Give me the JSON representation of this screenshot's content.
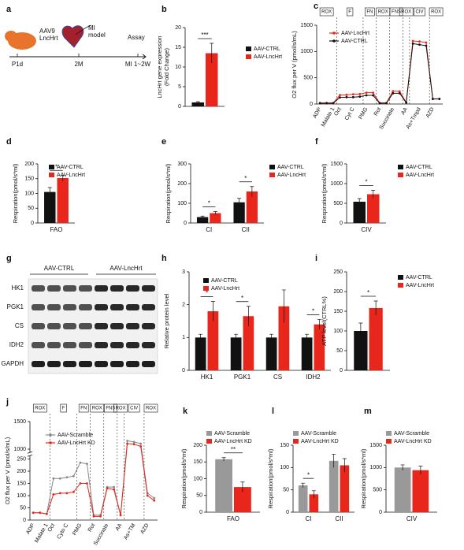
{
  "chart_data": [
    {
      "type": "diagram",
      "label": "a",
      "vector": [
        "AAV9",
        "LncHrt"
      ],
      "model": [
        "MI",
        "model"
      ],
      "assay": "Assay",
      "timepoints": [
        "P1d",
        "2M",
        "MI 1~2W"
      ]
    },
    {
      "type": "bar",
      "label": "b",
      "ylabel": [
        "LncHrt gene expression",
        "(Fold Change)"
      ],
      "categories": [
        null
      ],
      "series": [
        {
          "name": "AAV-CTRL",
          "color": "#111111",
          "values": [
            1
          ],
          "errors": [
            0.2
          ]
        },
        {
          "name": "AAV-LncHrt",
          "color": "#e8261c",
          "values": [
            13.5
          ],
          "errors": [
            2.5
          ]
        }
      ],
      "annotations": [
        "***"
      ],
      "ylim": [
        0,
        20
      ],
      "yticks": [
        0,
        5,
        10,
        15,
        20
      ]
    },
    {
      "type": "line",
      "label": "c",
      "ylabel": [
        "O2 flux per V (pmol/s/mL)"
      ],
      "phases": [
        "ROX",
        "F",
        "FN",
        "ROX",
        "FNS",
        "ROX",
        "CIV",
        "ROX"
      ],
      "categories": [
        "ADP",
        null,
        "Malate 1",
        "Oct",
        null,
        "Cyt C",
        null,
        "PMG",
        null,
        "Rot",
        null,
        "Succinate",
        null,
        "AA",
        null,
        "As+Tmpd",
        null,
        "AZD",
        null
      ],
      "series": [
        {
          "name": "AAV-LncHrt",
          "color": "#e8261c",
          "values": [
            20,
            20,
            20,
            170,
            175,
            185,
            190,
            215,
            215,
            20,
            20,
            245,
            240,
            30,
            1200,
            1190,
            1170,
            100,
            100
          ]
        },
        {
          "name": "AAV-CTRL",
          "color": "#111111",
          "values": [
            15,
            15,
            15,
            125,
            130,
            130,
            140,
            165,
            165,
            15,
            15,
            205,
            205,
            25,
            1150,
            1130,
            1110,
            95,
            95
          ]
        }
      ],
      "ylim": [
        0,
        1500
      ],
      "yticks": [
        0,
        500,
        1000,
        1500
      ]
    },
    {
      "type": "bar",
      "label": "d",
      "ylabel": [
        "Respiration(pmol/s*ml)"
      ],
      "categories": [
        "FAO"
      ],
      "series": [
        {
          "name": "AAV-CTRL",
          "color": "#111111",
          "values": [
            105
          ],
          "errors": [
            15
          ]
        },
        {
          "name": "AAV-LncHrt",
          "color": "#e8261c",
          "values": [
            152
          ],
          "errors": [
            10
          ]
        }
      ],
      "annotations": [
        "*"
      ],
      "ylim": [
        0,
        200
      ],
      "yticks": [
        0,
        50,
        100,
        150,
        200
      ]
    },
    {
      "type": "bar",
      "label": "e",
      "ylabel": [
        "Respiration(pmol/s*ml)"
      ],
      "categories": [
        "CI",
        "CII"
      ],
      "series": [
        {
          "name": "AAV-CTRL",
          "color": "#111111",
          "values": [
            30,
            105
          ],
          "errors": [
            5,
            20
          ]
        },
        {
          "name": "AAV-LncHrt",
          "color": "#e8261c",
          "values": [
            50,
            160
          ],
          "errors": [
            8,
            25
          ]
        }
      ],
      "annotations": [
        "*",
        "*"
      ],
      "ylim": [
        0,
        300
      ],
      "yticks": [
        0,
        100,
        200,
        300
      ]
    },
    {
      "type": "bar",
      "label": "f",
      "ylabel": [
        "Respiration(pmol/s*ml)"
      ],
      "categories": [
        "CIV"
      ],
      "series": [
        {
          "name": "AAV-CTRL",
          "color": "#111111",
          "values": [
            540
          ],
          "errors": [
            80
          ]
        },
        {
          "name": "AAV-LncHrt",
          "color": "#e8261c",
          "values": [
            730
          ],
          "errors": [
            100
          ]
        }
      ],
      "annotations": [
        "*"
      ],
      "ylim": [
        0,
        1500
      ],
      "yticks": [
        0,
        500,
        1000,
        1500
      ]
    },
    {
      "type": "blot",
      "label": "g",
      "groups": [
        "AAV-CTRL",
        "AAV-LncHrt"
      ],
      "rows": [
        "HK1",
        "PGK1",
        "CS",
        "IDH2",
        "GAPDH"
      ]
    },
    {
      "type": "bar",
      "label": "h",
      "ylabel": [
        "Relative protein level"
      ],
      "categories": [
        "HK1",
        "PGK1",
        "CS",
        "IDH2"
      ],
      "series": [
        {
          "name": "AAV-CTRL",
          "color": "#111111",
          "values": [
            1,
            1,
            1,
            1
          ],
          "errors": [
            0.1,
            0.1,
            0.1,
            0.1
          ]
        },
        {
          "name": "AAV-LncHrt",
          "color": "#e8261c",
          "values": [
            1.8,
            1.65,
            1.95,
            1.4
          ],
          "errors": [
            0.3,
            0.3,
            0.5,
            0.15
          ]
        }
      ],
      "annotations": [
        "*",
        "*",
        null,
        "*"
      ],
      "ylim": [
        0,
        3
      ],
      "yticks": [
        0,
        1,
        2,
        3
      ]
    },
    {
      "type": "bar",
      "label": "i",
      "ylabel": [
        "ATP level(CTRL%)"
      ],
      "categories": [
        null
      ],
      "series": [
        {
          "name": "AAV-CTRL",
          "color": "#111111",
          "values": [
            100
          ],
          "errors": [
            20
          ]
        },
        {
          "name": "AAV-LncHrt",
          "color": "#e8261c",
          "values": [
            158
          ],
          "errors": [
            18
          ]
        }
      ],
      "annotations": [
        "*"
      ],
      "ylim": [
        0,
        250
      ],
      "yticks": [
        0,
        50,
        100,
        150,
        200,
        250
      ]
    },
    {
      "type": "line",
      "label": "j",
      "ylabel": [
        "O2 flux per V (pmol/s/mL)"
      ],
      "phases": [
        "ROX",
        "F",
        "FN",
        "ROX",
        "FNS",
        "ROX",
        "CIV",
        "ROX"
      ],
      "categories": [
        "ADP",
        null,
        "Malate 1",
        "Oct",
        null,
        "Cyto C",
        null,
        "PMG",
        null,
        "Rot",
        null,
        "Succinate",
        null,
        "AA",
        null,
        "As+TM",
        null,
        "AZD",
        null
      ],
      "series": [
        {
          "name": "AAV-Scramble",
          "color": "#888888",
          "values": [
            30,
            30,
            25,
            170,
            170,
            175,
            180,
            235,
            230,
            20,
            20,
            135,
            135,
            20,
            1150,
            1130,
            1100,
            110,
            90
          ]
        },
        {
          "name": "AAV-LncHrt KD",
          "color": "#e8261c",
          "values": [
            30,
            30,
            25,
            105,
            110,
            110,
            115,
            150,
            150,
            15,
            15,
            130,
            125,
            20,
            1100,
            1090,
            1050,
            100,
            80
          ]
        }
      ],
      "ylim": [
        0,
        1500
      ],
      "ybreak": [
        250,
        1000
      ],
      "yticks": [
        0,
        50,
        100,
        150,
        200,
        250,
        1000,
        1500
      ]
    },
    {
      "type": "bar",
      "label": "k",
      "ylabel": [
        "Respiration(pmol/s*ml)"
      ],
      "categories": [
        "FAO"
      ],
      "series": [
        {
          "name": "AAV-Scramble",
          "color": "#999999",
          "values": [
            158
          ],
          "errors": [
            5
          ]
        },
        {
          "name": "AAV-LncHrt KD",
          "color": "#e8261c",
          "values": [
            75
          ],
          "errors": [
            15
          ]
        }
      ],
      "annotations": [
        "**"
      ],
      "ylim": [
        0,
        200
      ],
      "yticks": [
        0,
        50,
        100,
        150,
        200
      ]
    },
    {
      "type": "bar",
      "label": "l",
      "ylabel": [
        "Respiration(pmol/s*ml)"
      ],
      "categories": [
        "CI",
        "CII"
      ],
      "series": [
        {
          "name": "AAV-Scramble",
          "color": "#999999",
          "values": [
            60,
            115
          ],
          "errors": [
            5,
            15
          ]
        },
        {
          "name": "AAV-LncHrt KD",
          "color": "#e8261c",
          "values": [
            40,
            105
          ],
          "errors": [
            8,
            15
          ]
        }
      ],
      "annotations": [
        "*",
        null
      ],
      "ylim": [
        0,
        150
      ],
      "yticks": [
        0,
        50,
        100,
        150
      ]
    },
    {
      "type": "bar",
      "label": "m",
      "ylabel": [
        "Respiration(pmol/s*ml)"
      ],
      "categories": [
        "CIV"
      ],
      "series": [
        {
          "name": "AAV-Scramble",
          "color": "#999999",
          "values": [
            1000
          ],
          "errors": [
            60
          ]
        },
        {
          "name": "AAV-LncHrt KD",
          "color": "#e8261c",
          "values": [
            940
          ],
          "errors": [
            90
          ]
        }
      ],
      "annotations": [
        null
      ],
      "ylim": [
        0,
        1500
      ],
      "yticks": [
        0,
        500,
        1000,
        1500
      ]
    }
  ]
}
